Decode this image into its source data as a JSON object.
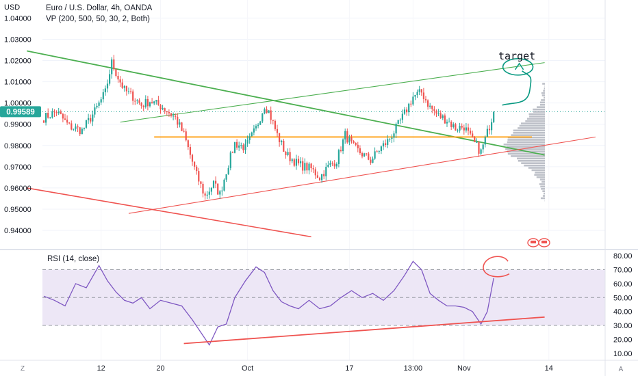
{
  "header": {
    "currency": "USD",
    "symbol_title": "Euro / U.S. Dollar, 4h, OANDA",
    "indicator_title": "VP (200, 500, 50, 30, 2, Both)"
  },
  "colors": {
    "up": "#26a69a",
    "down": "#ef5350",
    "green_line": "#4caf50",
    "red_line": "#ef5350",
    "orange_line": "#ff9800",
    "rsi_line": "#7e57c2",
    "rsi_band": "#ede7f6",
    "vp": "#b2b5be",
    "price_tag": "#26a69a",
    "hand": "#089981"
  },
  "chart_data": [
    {
      "type": "candlestick",
      "title": "Euro / U.S. Dollar, 4h, OANDA",
      "ylabel": "USD",
      "ylim": [
        0.931,
        1.0485
      ],
      "yticks": [
        "1.04000",
        "1.03000",
        "1.02000",
        "1.01000",
        "1.00000",
        "0.99000",
        "0.98000",
        "0.97000",
        "0.96000",
        "0.95000",
        "0.94000"
      ],
      "current_price": "0.99589",
      "current_value": 0.99589,
      "x_labels": [
        "12",
        "20",
        "Oct",
        "17",
        "13:00",
        "Nov",
        "14"
      ],
      "close_path": [
        [
          0,
          0.993
        ],
        [
          6,
          0.996
        ],
        [
          12,
          0.989
        ],
        [
          18,
          0.987
        ],
        [
          24,
          0.996
        ],
        [
          29,
          1.005
        ],
        [
          32,
          1.019
        ],
        [
          35,
          1.012
        ],
        [
          38,
          1.006
        ],
        [
          42,
          1.003
        ],
        [
          46,
          0.999
        ],
        [
          50,
          1.001
        ],
        [
          56,
          0.998
        ],
        [
          62,
          0.993
        ],
        [
          66,
          0.985
        ],
        [
          72,
          0.966
        ],
        [
          76,
          0.956
        ],
        [
          80,
          0.962
        ],
        [
          83,
          0.957
        ],
        [
          86,
          0.968
        ],
        [
          90,
          0.981
        ],
        [
          95,
          0.979
        ],
        [
          100,
          0.988
        ],
        [
          104,
          0.999
        ],
        [
          106,
          0.996
        ],
        [
          110,
          0.985
        ],
        [
          114,
          0.976
        ],
        [
          120,
          0.971
        ],
        [
          126,
          0.969
        ],
        [
          130,
          0.965
        ],
        [
          134,
          0.97
        ],
        [
          138,
          0.973
        ],
        [
          142,
          0.985
        ],
        [
          146,
          0.979
        ],
        [
          150,
          0.976
        ],
        [
          154,
          0.973
        ],
        [
          158,
          0.978
        ],
        [
          162,
          0.982
        ],
        [
          166,
          0.988
        ],
        [
          170,
          0.995
        ],
        [
          174,
          1.003
        ],
        [
          178,
          1.005
        ],
        [
          182,
          0.998
        ],
        [
          186,
          0.994
        ],
        [
          190,
          0.992
        ],
        [
          194,
          0.988
        ],
        [
          198,
          0.989
        ],
        [
          202,
          0.982
        ],
        [
          206,
          0.977
        ],
        [
          209,
          0.986
        ],
        [
          212,
          0.9959
        ]
      ],
      "extras": [
        {
          "type": "trendline",
          "color": "green_line",
          "width": 1.8,
          "points": [
            [
              -8,
              1.0245
            ],
            [
              236,
              0.9755
            ]
          ]
        },
        {
          "type": "trendline",
          "color": "green_line",
          "width": 1.1,
          "points": [
            [
              36,
              0.991
            ],
            [
              236,
              1.019
            ]
          ]
        },
        {
          "type": "trendline",
          "color": "red_line",
          "width": 1.6,
          "points": [
            [
              -8,
              0.96
            ],
            [
              126,
              0.937
            ]
          ]
        },
        {
          "type": "trendline",
          "color": "red_line",
          "width": 1.1,
          "points": [
            [
              40,
              0.948
            ],
            [
              260,
              0.984
            ]
          ]
        },
        {
          "type": "hline",
          "color": "orange_line",
          "width": 1.8,
          "value": 0.984,
          "x_from": 52,
          "x_to": 230
        }
      ]
    },
    {
      "type": "line",
      "title": "RSI (14, close)",
      "ylim": [
        5,
        83
      ],
      "yticks": [
        "80.00",
        "70.00",
        "60.00",
        "50.00",
        "40.00",
        "30.00",
        "20.00",
        "10.00"
      ],
      "bands": [
        70,
        50,
        30
      ],
      "x_labels": [
        "12",
        "20",
        "Oct",
        "17",
        "13:00",
        "Nov",
        "14"
      ],
      "x": [
        0,
        5,
        10,
        15,
        20,
        26,
        30,
        34,
        38,
        42,
        46,
        50,
        55,
        60,
        65,
        70,
        74,
        78,
        82,
        86,
        90,
        95,
        100,
        104,
        108,
        112,
        116,
        120,
        125,
        130,
        135,
        140,
        145,
        150,
        155,
        160,
        165,
        170,
        174,
        178,
        182,
        186,
        190,
        194,
        198,
        202,
        206,
        209,
        212
      ],
      "values": [
        51,
        48,
        44,
        60,
        57,
        73,
        62,
        54,
        48,
        46,
        50,
        42,
        48,
        46,
        44,
        34,
        25,
        16,
        29,
        31,
        50,
        62,
        72,
        68,
        55,
        47,
        44,
        42,
        48,
        42,
        44,
        50,
        55,
        50,
        53,
        48,
        55,
        66,
        76,
        70,
        53,
        48,
        44,
        44,
        43,
        40,
        31,
        40,
        64
      ],
      "support_line": {
        "points": [
          [
            66,
            17
          ],
          [
            236,
            36
          ]
        ]
      }
    }
  ]
}
